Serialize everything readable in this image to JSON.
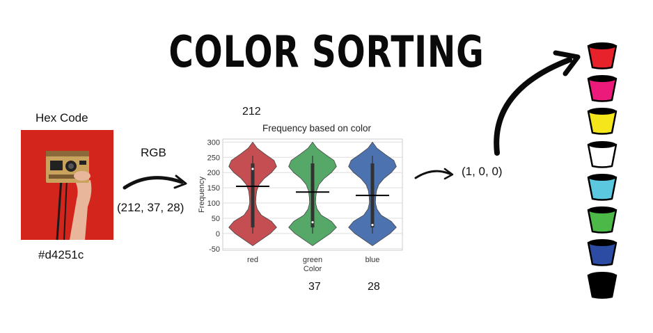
{
  "title": "COLOR SORTING",
  "hex_label": "Hex Code",
  "hex_value": "#d4251c",
  "rgb_label": "RGB",
  "rgb_value": "(212, 37, 28)",
  "output_value": "(1, 0, 0)",
  "channel_values": {
    "red": "212",
    "green": "37",
    "blue": "28"
  },
  "colors": {
    "photo_bg": "#d4251c",
    "violin_red": "#c44e52",
    "violin_green": "#55a868",
    "violin_blue": "#4c72b0"
  },
  "buckets": [
    {
      "color": "#e8222a"
    },
    {
      "color": "#ec1a7a"
    },
    {
      "color": "#f4e61a"
    },
    {
      "color": "#ffffff"
    },
    {
      "color": "#5cc8e0"
    },
    {
      "color": "#4cb848"
    },
    {
      "color": "#2c4ca4"
    },
    {
      "color": "#000000"
    }
  ],
  "chart_data": {
    "type": "violin",
    "title": "Frequency based on color",
    "xlabel": "Color",
    "ylabel": "Frequency",
    "categories": [
      "red",
      "green",
      "blue"
    ],
    "ylim": [
      -55,
      310
    ],
    "yticks": [
      -50,
      0,
      50,
      100,
      150,
      200,
      250,
      300
    ],
    "mean_lines": [
      155,
      136,
      125
    ],
    "medians": [
      212,
      37,
      28
    ],
    "grid": true
  }
}
